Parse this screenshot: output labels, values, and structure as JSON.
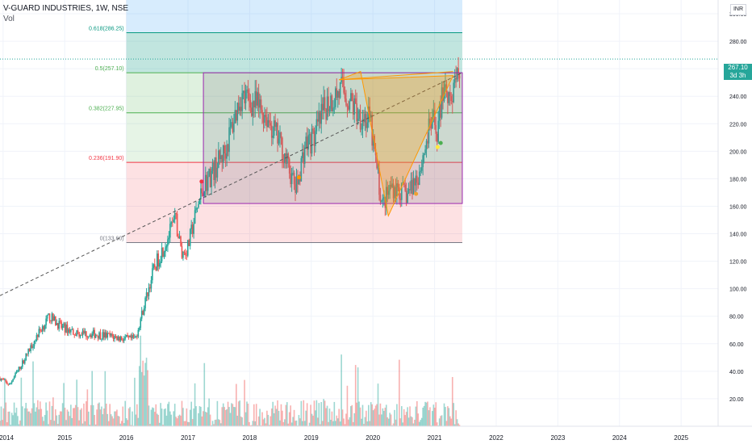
{
  "header": {
    "title": "V-GUARD INDUSTRIES, 1W, NSE",
    "volume_label": "Vol",
    "currency": "INR"
  },
  "price_tag": {
    "price": "267.10",
    "countdown": "3d 3h"
  },
  "chart_data": {
    "type": "candlestick",
    "symbol": "V-GUARD INDUSTRIES",
    "interval": "1W",
    "exchange": "NSE",
    "x_ticks": [
      "2014",
      "2015",
      "2016",
      "2017",
      "2018",
      "2019",
      "2020",
      "2021",
      "2022",
      "2023",
      "2024",
      "2025"
    ],
    "y_ticks": [
      20,
      40,
      60,
      80,
      100,
      120,
      140,
      160,
      180,
      200,
      220,
      240,
      260,
      280,
      300
    ],
    "y_tick_labels": [
      "20.00",
      "40.00",
      "60.00",
      "80.00",
      "100.00",
      "120.00",
      "140.00",
      "160.00",
      "180.00",
      "200.00",
      "220.00",
      "240.00",
      "260.00",
      "280.00",
      "300.00"
    ],
    "ylim": [
      0,
      310
    ],
    "xlim": [
      2013.95,
      2025.6
    ],
    "last_price": 267.1,
    "price_path": [
      [
        2013.95,
        35
      ],
      [
        2014.1,
        30
      ],
      [
        2014.3,
        45
      ],
      [
        2014.55,
        66
      ],
      [
        2014.75,
        80
      ],
      [
        2014.95,
        72
      ],
      [
        2015.2,
        68
      ],
      [
        2015.5,
        67
      ],
      [
        2015.8,
        65
      ],
      [
        2016.05,
        63
      ],
      [
        2016.15,
        64
      ],
      [
        2016.3,
        90
      ],
      [
        2016.45,
        115
      ],
      [
        2016.6,
        130
      ],
      [
        2016.8,
        150
      ],
      [
        2016.9,
        125
      ],
      [
        2017.0,
        130
      ],
      [
        2017.1,
        150
      ],
      [
        2017.25,
        175
      ],
      [
        2017.4,
        185
      ],
      [
        2017.6,
        200
      ],
      [
        2017.85,
        240
      ],
      [
        2018.05,
        235
      ],
      [
        2018.25,
        228
      ],
      [
        2018.5,
        205
      ],
      [
        2018.75,
        172
      ],
      [
        2018.9,
        205
      ],
      [
        2019.05,
        210
      ],
      [
        2019.25,
        235
      ],
      [
        2019.5,
        245
      ],
      [
        2019.75,
        228
      ],
      [
        2019.95,
        222
      ],
      [
        2020.15,
        160
      ],
      [
        2020.3,
        175
      ],
      [
        2020.55,
        168
      ],
      [
        2020.75,
        185
      ],
      [
        2020.95,
        222
      ],
      [
        2021.05,
        215
      ],
      [
        2021.15,
        250
      ],
      [
        2021.3,
        238
      ],
      [
        2021.42,
        265
      ]
    ],
    "volume_ylim": [
      0,
      50
    ],
    "fibonacci": {
      "levels": [
        {
          "ratio": "0.618",
          "price": 286.25,
          "label": "0.618(286.25)",
          "color": "#089981"
        },
        {
          "ratio": "0.5",
          "price": 257.1,
          "label": "0.5(257.10)",
          "color": "#4caf50"
        },
        {
          "ratio": "0.382",
          "price": 227.95,
          "label": "0.382(227.95)",
          "color": "#4caf50"
        },
        {
          "ratio": "0.236",
          "price": 191.9,
          "label": "0.236(191.90)",
          "color": "#f23645"
        },
        {
          "ratio": "0",
          "price": 133.6,
          "label": "0(133.60)",
          "color": "#787b86"
        }
      ],
      "x_start": 2016.0,
      "x_end": 2021.45
    },
    "rectangle": {
      "x_start": 2017.25,
      "x_end": 2021.45,
      "y_low": 162,
      "y_high": 257.1
    },
    "trendline": {
      "x1": 2013.95,
      "y1": 95,
      "x2": 2021.45,
      "y2": 257.1
    },
    "triangle_pattern": [
      [
        2019.45,
        252
      ],
      [
        2019.8,
        258
      ],
      [
        2020.25,
        153
      ],
      [
        2021.3,
        255
      ]
    ],
    "triangle_top_line": [
      [
        2019.45,
        252
      ],
      [
        2021.3,
        258
      ]
    ],
    "markers": [
      {
        "x": 2017.22,
        "y": 178,
        "color": "#f23645"
      },
      {
        "x": 2018.8,
        "y": 181,
        "color": "#ff9800"
      },
      {
        "x": 2020.7,
        "y": 169,
        "color": "#f0a030"
      },
      {
        "x": 2021.05,
        "y": 203,
        "color": "#ffeb3b"
      },
      {
        "x": 2021.1,
        "y": 206,
        "color": "#4caf50"
      }
    ],
    "colors": {
      "up": "#26a69a",
      "down": "#ef5350",
      "grid": "#f0f3fa",
      "axis_text": "#131722"
    }
  }
}
